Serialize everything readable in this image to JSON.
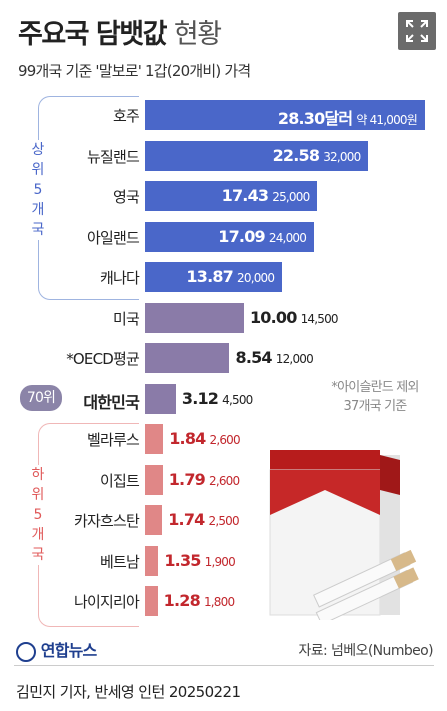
{
  "header": {
    "title_bold": "주요국 담뱃값",
    "title_light": "현황",
    "subtitle": "99개국 기준 '말보로' 1갑(20개비) 가격"
  },
  "groups": {
    "top": "상위 5개국",
    "bottom": "하위 5개국"
  },
  "korea_rank": "70위",
  "note": [
    "*아이슬란드 제외",
    "37개국 기준"
  ],
  "footer": {
    "logo": "연합뉴스",
    "source": "자료: 넘베오(Numbeo)",
    "credit": "김민지 기자, 반세영 인턴  20250221"
  },
  "colors": {
    "top": "#4a67c9",
    "middle": "#8a7ba8",
    "bottom": "#e08787",
    "bottom_text": "#c2272d",
    "top_group_text": "#4a67c9",
    "bottom_group_text": "#e05a5a"
  },
  "chart_data": {
    "type": "bar",
    "orientation": "horizontal",
    "unit_primary": "달러",
    "categories": [
      "호주",
      "뉴질랜드",
      "영국",
      "아일랜드",
      "캐나다",
      "미국",
      "*OECD평균",
      "대한민국",
      "벨라루스",
      "이집트",
      "카자흐스탄",
      "베트남",
      "나이지리아"
    ],
    "values": [
      28.3,
      22.58,
      17.43,
      17.09,
      13.87,
      10.0,
      8.54,
      3.12,
      1.84,
      1.79,
      1.74,
      1.35,
      1.28
    ],
    "value_labels": [
      "28.30달러",
      "22.58",
      "17.43",
      "17.09",
      "13.87",
      "10.00",
      "8.54",
      "3.12",
      "1.84",
      "1.79",
      "1.74",
      "1.35",
      "1.28"
    ],
    "krw_labels": [
      "약 41,000원",
      "32,000",
      "25,000",
      "24,000",
      "20,000",
      "14,500",
      "12,000",
      "4,500",
      "2,600",
      "2,600",
      "2,500",
      "1,900",
      "1,800"
    ],
    "groups": [
      "top",
      "top",
      "top",
      "top",
      "top",
      "middle",
      "middle",
      "middle",
      "bottom",
      "bottom",
      "bottom",
      "bottom",
      "bottom"
    ]
  }
}
